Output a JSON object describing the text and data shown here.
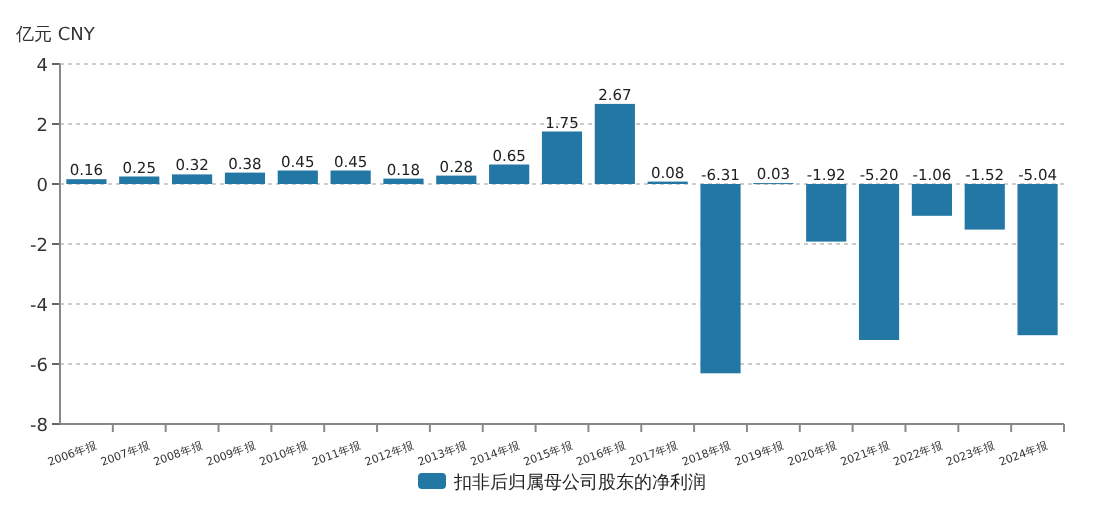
{
  "chart_data": {
    "type": "bar",
    "ylabel": "亿元  CNY",
    "categories": [
      "2006年报",
      "2007年报",
      "2008年报",
      "2009年报",
      "2010年报",
      "2011年报",
      "2012年报",
      "2013年报",
      "2014年报",
      "2015年报",
      "2016年报",
      "2017年报",
      "2018年报",
      "2019年报",
      "2020年报",
      "2021年报",
      "2022年报",
      "2023年报",
      "2024年报"
    ],
    "series": [
      {
        "name": "扣非后归属母公司股东的净利润",
        "color": "#2277a4",
        "values": [
          0.16,
          0.25,
          0.32,
          0.38,
          0.45,
          0.45,
          0.18,
          0.28,
          0.65,
          1.75,
          2.67,
          0.08,
          -6.31,
          0.03,
          -1.92,
          -5.2,
          -1.06,
          -1.52,
          -5.04
        ]
      }
    ],
    "value_labels": [
      "0.16",
      "0.25",
      "0.32",
      "0.38",
      "0.45",
      "0.45",
      "0.18",
      "0.28",
      "0.65",
      "1.75",
      "2.67",
      "0.08",
      "-6.31",
      "0.03",
      "-1.92",
      "-5.20",
      "-1.06",
      "-1.52",
      "-5.04"
    ],
    "ylim": [
      -8,
      4
    ],
    "yticks": [
      -8,
      -6,
      -4,
      -2,
      0,
      2,
      4
    ],
    "grid": "y",
    "legend": "bottom"
  }
}
